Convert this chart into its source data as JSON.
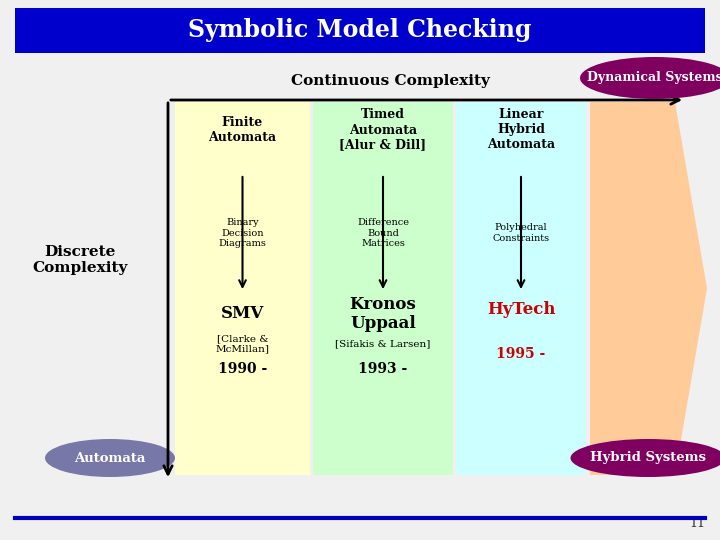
{
  "title": "Symbolic Model Checking",
  "title_bg": "#0000CC",
  "title_color": "#FFFFFF",
  "bg_color": "#F0F0F0",
  "continuous_label": "Continuous Complexity",
  "discrete_label": "Discrete\nComplexity",
  "automata_label": "Automata",
  "hybrid_label": "Hybrid Systems",
  "dynamical_label": "Dynamical Systems",
  "col1_bg": "#FFFFCC",
  "col2_bg": "#CCFFCC",
  "col3_bg": "#CCFFFF",
  "col4_bg": "#FFCC99",
  "col1_header": "Finite\nAutomata",
  "col2_header": "Timed\nAutomata\n[Alur & Dill]",
  "col3_header": "Linear\nHybrid\nAutomata",
  "col1_mid": "Binary\nDecision\nDiagrams",
  "col2_mid": "Difference\nBound\nMatrices",
  "col3_mid": "Polyhedral\nConstraints",
  "col1_tool": "SMV",
  "col1_ref": "[Clarke &\nMcMillan]",
  "col1_year": "1990 -",
  "col2_tool": "Kronos\nUppaal",
  "col2_ref": "[Sifakis & Larsen]",
  "col2_year": "1993 -",
  "col3_tool": "HyTech",
  "col3_year": "1995 -",
  "hytech_color": "#CC0000",
  "dark_maroon": "#800060",
  "slate_blue": "#7878A8",
  "page_num": "11"
}
